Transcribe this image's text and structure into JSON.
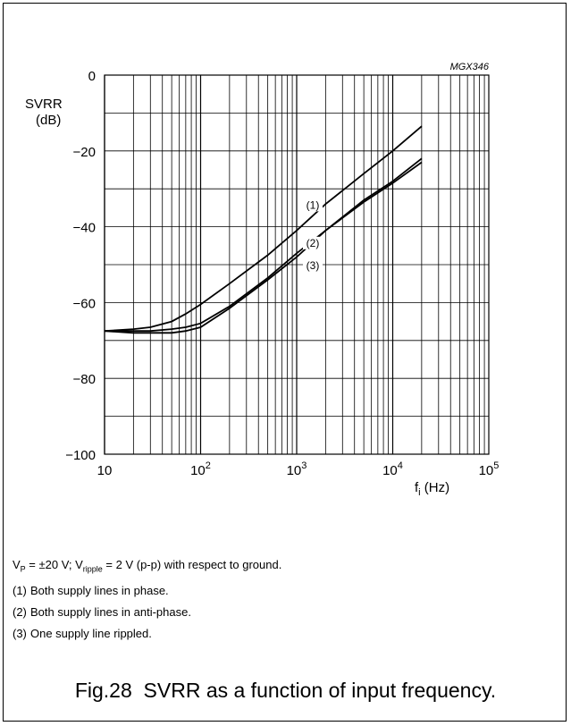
{
  "figure_code": "MGX346",
  "chart_data": {
    "type": "line",
    "ylabel": [
      "SVRR",
      "(dB)"
    ],
    "xlabel": "(Hz)",
    "xlabel_symbol": "f",
    "xlabel_subscript": "i",
    "x_scale": "log",
    "xlim": [
      10,
      100000
    ],
    "ylim": [
      -100,
      0
    ],
    "y_ticks": [
      "0",
      "−20",
      "−40",
      "−60",
      "−80",
      "−100"
    ],
    "y_tick_values": [
      0,
      -20,
      -40,
      -60,
      -80,
      -100
    ],
    "x_ticks": [
      {
        "value": 10,
        "base": "10",
        "exp": ""
      },
      {
        "value": 100,
        "base": "10",
        "exp": "2"
      },
      {
        "value": 1000,
        "base": "10",
        "exp": "3"
      },
      {
        "value": 10000,
        "base": "10",
        "exp": "4"
      },
      {
        "value": 100000,
        "base": "10",
        "exp": "5"
      }
    ],
    "grid": true,
    "series": [
      {
        "name": "(1)",
        "x": [
          10,
          20,
          30,
          50,
          70,
          100,
          200,
          500,
          1000,
          2000,
          5000,
          10000,
          20000
        ],
        "y": [
          -67.5,
          -67,
          -66.5,
          -65,
          -63,
          -60.5,
          -55,
          -47.5,
          -41,
          -34,
          -26,
          -20,
          -13.5
        ]
      },
      {
        "name": "(2)",
        "x": [
          10,
          20,
          30,
          50,
          70,
          100,
          200,
          500,
          1000,
          2000,
          5000,
          10000,
          20000
        ],
        "y": [
          -67.5,
          -67.5,
          -67.5,
          -67,
          -66.5,
          -65.5,
          -61,
          -53.5,
          -47,
          -41,
          -33,
          -28,
          -22
        ]
      },
      {
        "name": "(3)",
        "x": [
          10,
          20,
          30,
          50,
          70,
          100,
          200,
          500,
          1000,
          2000,
          5000,
          10000,
          20000
        ],
        "y": [
          -67.5,
          -68,
          -68,
          -68,
          -67.5,
          -66.5,
          -61.5,
          -54,
          -48,
          -41,
          -33.5,
          -28.5,
          -23
        ]
      }
    ],
    "series_label_positions": [
      {
        "label": "(1)",
        "x": 1000,
        "y": -35
      },
      {
        "label": "(2)",
        "x": 1000,
        "y": -45
      },
      {
        "label": "(3)",
        "x": 1000,
        "y": -51
      }
    ]
  },
  "notes": {
    "conditions": {
      "v": "V",
      "v_sub": "P",
      "eq1": " = ±20 V; ",
      "v2": "V",
      "v2_sub": "ripple",
      "eq2": " = 2 V (p-p) with respect to ground."
    },
    "items": [
      {
        "num": "(1)",
        "text": "Both supply lines in phase."
      },
      {
        "num": "(2)",
        "text": "Both supply lines in anti-phase."
      },
      {
        "num": "(3)",
        "text": "One supply line rippled."
      }
    ]
  },
  "caption": "Fig.28  SVRR as a function of input frequency."
}
